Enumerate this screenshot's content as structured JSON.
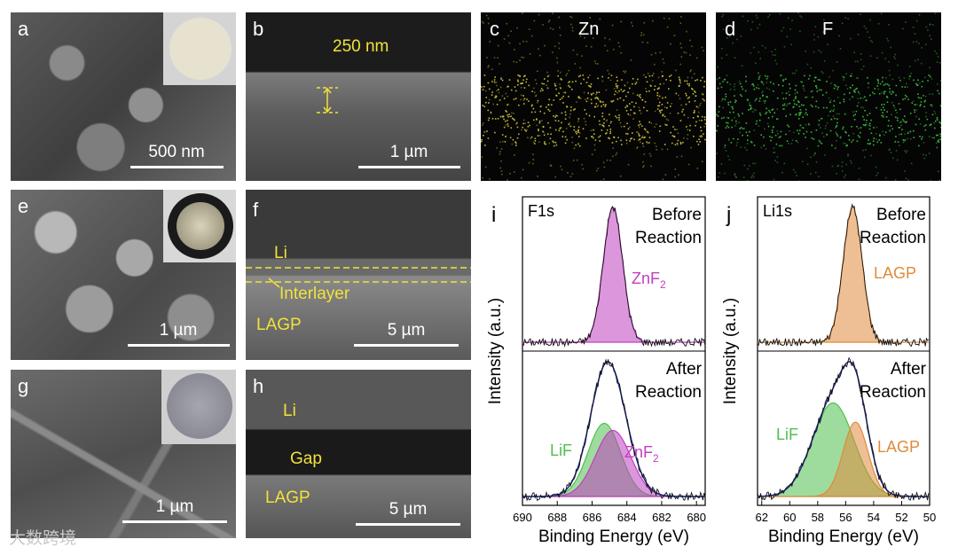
{
  "panels": {
    "a": {
      "label": "a",
      "scale": "500 nm"
    },
    "b": {
      "label": "b",
      "thickness": "250 nm",
      "scale": "1 µm"
    },
    "c": {
      "label": "c",
      "element": "Zn"
    },
    "d": {
      "label": "d",
      "element": "F"
    },
    "e": {
      "label": "e",
      "scale": "1 µm"
    },
    "f": {
      "label": "f",
      "li": "Li",
      "interlayer": "Interlayer",
      "lagp": "LAGP",
      "scale": "5 µm"
    },
    "g": {
      "label": "g",
      "scale": "1 µm"
    },
    "h": {
      "label": "h",
      "li": "Li",
      "gap": "Gap",
      "lagp": "LAGP",
      "scale": "5 µm"
    }
  },
  "watermark": "大数跨境",
  "colors": {
    "zn_dots": "#d6c83a",
    "f_dots": "#3ec43e",
    "znf2": "#c040c0",
    "lif": "#4fbf4f",
    "lagp": "#e08a3c",
    "envelope": "#1c2a8c"
  },
  "chart_data": [
    {
      "type": "line",
      "panel_label": "i",
      "spectrum": "F1s",
      "xlabel": "Binding Energy (eV)",
      "ylabel": "Intensity (a.u.)",
      "xlim": [
        690,
        679.5
      ],
      "x_ticks": [
        690,
        688,
        686,
        684,
        682,
        680
      ],
      "x_reversed": true,
      "top": {
        "condition_line1": "Before",
        "condition_line2": "Reaction",
        "series": [
          {
            "name": "ZnF2",
            "peaks": [
              {
                "center": 684.8,
                "fwhm": 1.3,
                "height": 1.0
              }
            ]
          }
        ]
      },
      "bottom": {
        "condition_line1": "After",
        "condition_line2": "Reaction",
        "series": [
          {
            "name": "LiF",
            "peaks": [
              {
                "center": 685.3,
                "fwhm": 2.2,
                "height": 0.62
              }
            ]
          },
          {
            "name": "ZnF2",
            "peaks": [
              {
                "center": 684.8,
                "fwhm": 2.4,
                "height": 0.56
              }
            ]
          }
        ]
      }
    },
    {
      "type": "line",
      "panel_label": "j",
      "spectrum": "Li1s",
      "xlabel": "Binding Energy (eV)",
      "ylabel": "Intensity (a.u.)",
      "xlim": [
        62.3,
        50
      ],
      "x_ticks": [
        62,
        60,
        58,
        56,
        54,
        52,
        50
      ],
      "x_reversed": true,
      "top": {
        "condition_line1": "Before",
        "condition_line2": "Reaction",
        "series": [
          {
            "name": "LAGP",
            "peaks": [
              {
                "center": 55.5,
                "fwhm": 1.6,
                "height": 1.0
              }
            ]
          }
        ]
      },
      "bottom": {
        "condition_line1": "After",
        "condition_line2": "Reaction",
        "series": [
          {
            "name": "LiF",
            "peaks": [
              {
                "center": 56.9,
                "fwhm": 3.5,
                "height": 0.78
              }
            ]
          },
          {
            "name": "LAGP",
            "peaks": [
              {
                "center": 55.3,
                "fwhm": 2.1,
                "height": 0.62
              }
            ]
          }
        ]
      }
    }
  ]
}
